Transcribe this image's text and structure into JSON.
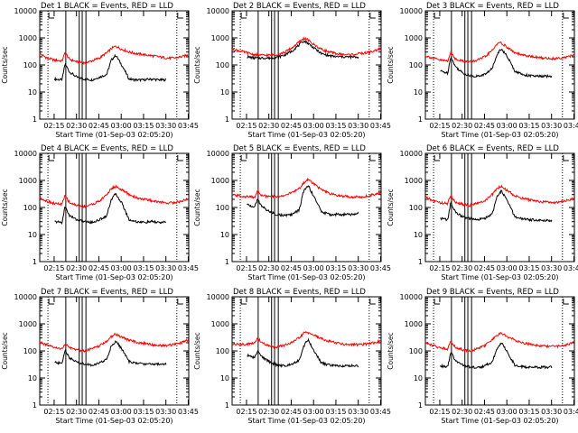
{
  "figure": {
    "x_tick_labels": [
      "02:15",
      "02:30",
      "02:45",
      "03:00",
      "03:15",
      "03:30",
      "03:45"
    ],
    "y_tick_labels": [
      "1",
      "10",
      "100",
      "1000",
      "10000"
    ],
    "ylabel": "Counts/sec",
    "xlabel": "Start Time (01-Sep-03 02:05:20)",
    "title_suffix": " BLACK = Events, RED = LLD",
    "colors": {
      "events": "#000000",
      "lld": "#ff0000",
      "axes": "#000000",
      "background": "#ffffff"
    }
  },
  "chart_data": [
    {
      "type": "line",
      "title": "Det 1",
      "x_unit": "minutes after 02:05:20",
      "xlim": [
        0,
        100
      ],
      "ylim": [
        1,
        10000
      ],
      "yscale": "log",
      "xlabel": "Start Time (01-Sep-03 02:05:20)",
      "ylabel": "Counts/sec",
      "dotted_markers": [
        5.5,
        92
      ],
      "solid_markers": [
        17.5,
        26.5,
        28.5,
        31
      ],
      "events_range": [
        10,
        85
      ],
      "lld_range": [
        0,
        100
      ],
      "series": [
        {
          "name": "Events",
          "x": [
            10,
            15,
            17,
            20,
            25,
            30,
            35,
            40,
            45,
            48,
            51,
            55,
            60,
            65,
            70,
            75,
            80,
            85
          ],
          "y": [
            30,
            28,
            110,
            55,
            35,
            30,
            28,
            35,
            45,
            150,
            230,
            100,
            30,
            28,
            28,
            30,
            28,
            28
          ]
        },
        {
          "name": "LLD",
          "x": [
            0,
            5,
            10,
            15,
            17,
            20,
            25,
            30,
            35,
            40,
            45,
            48,
            51,
            55,
            60,
            65,
            70,
            75,
            80,
            85,
            90,
            95,
            100
          ],
          "y": [
            260,
            180,
            150,
            140,
            290,
            160,
            130,
            120,
            140,
            180,
            280,
            400,
            500,
            380,
            300,
            260,
            240,
            220,
            200,
            180,
            180,
            200,
            240
          ]
        }
      ]
    },
    {
      "type": "line",
      "title": "Det 2",
      "x_unit": "minutes after 02:05:20",
      "xlim": [
        0,
        100
      ],
      "ylim": [
        1,
        10000
      ],
      "yscale": "log",
      "xlabel": "Start Time (01-Sep-03 02:05:20)",
      "ylabel": "Counts/sec",
      "dotted_markers": [
        5.5,
        92
      ],
      "solid_markers": [
        17.5,
        26.5,
        28.5,
        31
      ],
      "events_range": [
        10,
        85
      ],
      "lld_range": [
        0,
        100
      ],
      "series": [
        {
          "name": "Events",
          "x": [
            10,
            15,
            20,
            25,
            30,
            35,
            40,
            45,
            48,
            50,
            55,
            60,
            65,
            70,
            75,
            80,
            85
          ],
          "y": [
            200,
            180,
            180,
            180,
            190,
            230,
            320,
            550,
            760,
            700,
            420,
            260,
            220,
            200,
            200,
            195,
            195
          ]
        },
        {
          "name": "LLD",
          "x": [
            0,
            5,
            10,
            15,
            20,
            25,
            30,
            35,
            40,
            45,
            48,
            50,
            55,
            60,
            65,
            70,
            75,
            80,
            85,
            90,
            95,
            100
          ],
          "y": [
            380,
            330,
            280,
            240,
            230,
            230,
            240,
            290,
            420,
            700,
            950,
            900,
            560,
            380,
            300,
            260,
            240,
            240,
            260,
            280,
            320,
            420
          ]
        }
      ]
    },
    {
      "type": "line",
      "title": "Det 3",
      "x_unit": "minutes after 02:05:20",
      "xlim": [
        0,
        100
      ],
      "ylim": [
        1,
        10000
      ],
      "yscale": "log",
      "xlabel": "Start Time (01-Sep-03 02:05:20)",
      "ylabel": "Counts/sec",
      "dotted_markers": [
        5.5,
        92
      ],
      "solid_markers": [
        17.5,
        26.5,
        28.5,
        31
      ],
      "events_range": [
        10,
        85
      ],
      "lld_range": [
        0,
        100
      ],
      "series": [
        {
          "name": "Events",
          "x": [
            10,
            15,
            17,
            20,
            25,
            30,
            35,
            40,
            45,
            48,
            51,
            55,
            60,
            65,
            70,
            75,
            80,
            85
          ],
          "y": [
            60,
            50,
            200,
            90,
            50,
            40,
            38,
            45,
            75,
            250,
            400,
            200,
            60,
            45,
            40,
            38,
            38,
            38
          ]
        },
        {
          "name": "LLD",
          "x": [
            0,
            5,
            10,
            15,
            17,
            20,
            25,
            30,
            35,
            40,
            45,
            48,
            51,
            55,
            60,
            65,
            70,
            75,
            80,
            85,
            90,
            95,
            100
          ],
          "y": [
            220,
            180,
            150,
            140,
            300,
            170,
            140,
            130,
            150,
            200,
            350,
            600,
            650,
            450,
            280,
            230,
            210,
            190,
            180,
            170,
            180,
            200,
            230
          ]
        }
      ]
    },
    {
      "type": "line",
      "title": "Det 4",
      "x_unit": "minutes after 02:05:20",
      "xlim": [
        0,
        100
      ],
      "ylim": [
        1,
        10000
      ],
      "yscale": "log",
      "xlabel": "Start Time (01-Sep-03 02:05:20)",
      "ylabel": "Counts/sec",
      "dotted_markers": [
        5.5,
        92
      ],
      "solid_markers": [
        17.5,
        26.5,
        28.5,
        31
      ],
      "events_range": [
        10,
        85
      ],
      "lld_range": [
        0,
        100
      ],
      "series": [
        {
          "name": "Events",
          "x": [
            10,
            15,
            17,
            20,
            25,
            30,
            35,
            40,
            45,
            48,
            51,
            55,
            60,
            65,
            70,
            75,
            80,
            85
          ],
          "y": [
            30,
            28,
            110,
            50,
            35,
            30,
            28,
            35,
            50,
            200,
            320,
            150,
            35,
            30,
            28,
            30,
            28,
            28
          ]
        },
        {
          "name": "LLD",
          "x": [
            0,
            5,
            10,
            15,
            17,
            20,
            25,
            30,
            35,
            40,
            45,
            48,
            51,
            55,
            60,
            65,
            70,
            75,
            80,
            85,
            90,
            95,
            100
          ],
          "y": [
            230,
            170,
            140,
            130,
            280,
            150,
            120,
            110,
            130,
            170,
            300,
            500,
            600,
            450,
            300,
            230,
            200,
            180,
            160,
            150,
            150,
            170,
            210
          ]
        }
      ]
    },
    {
      "type": "line",
      "title": "Det 5",
      "x_unit": "minutes after 02:05:20",
      "xlim": [
        0,
        100
      ],
      "ylim": [
        1,
        10000
      ],
      "yscale": "log",
      "xlabel": "Start Time (01-Sep-03 02:05:20)",
      "ylabel": "Counts/sec",
      "dotted_markers": [
        5.5,
        92
      ],
      "solid_markers": [
        17.5,
        26.5,
        28.5,
        31
      ],
      "events_range": [
        10,
        85
      ],
      "lld_range": [
        0,
        100
      ],
      "series": [
        {
          "name": "Events",
          "x": [
            10,
            15,
            17,
            20,
            25,
            30,
            35,
            40,
            45,
            48,
            51,
            55,
            60,
            65,
            70,
            75,
            80,
            85
          ],
          "y": [
            130,
            100,
            200,
            110,
            70,
            55,
            50,
            55,
            80,
            400,
            650,
            250,
            70,
            55,
            55,
            55,
            55,
            60
          ]
        },
        {
          "name": "LLD",
          "x": [
            0,
            5,
            10,
            15,
            17,
            20,
            25,
            30,
            35,
            40,
            45,
            48,
            51,
            55,
            60,
            65,
            70,
            75,
            80,
            85,
            90,
            95,
            100
          ],
          "y": [
            290,
            270,
            250,
            240,
            420,
            280,
            250,
            250,
            280,
            350,
            500,
            800,
            1100,
            750,
            450,
            330,
            280,
            260,
            250,
            240,
            260,
            300,
            380
          ]
        }
      ]
    },
    {
      "type": "line",
      "title": "Det 6",
      "x_unit": "minutes after 02:05:20",
      "xlim": [
        0,
        100
      ],
      "ylim": [
        1,
        10000
      ],
      "yscale": "log",
      "xlabel": "Start Time (01-Sep-03 02:05:20)",
      "ylabel": "Counts/sec",
      "dotted_markers": [
        5.5,
        92
      ],
      "solid_markers": [
        17.5,
        26.5,
        28.5,
        31
      ],
      "events_range": [
        10,
        85
      ],
      "lld_range": [
        0,
        100
      ],
      "series": [
        {
          "name": "Events",
          "x": [
            10,
            15,
            17,
            20,
            25,
            30,
            35,
            40,
            45,
            48,
            51,
            55,
            60,
            65,
            70,
            75,
            80,
            85
          ],
          "y": [
            40,
            35,
            150,
            70,
            45,
            38,
            35,
            40,
            60,
            250,
            400,
            180,
            45,
            38,
            35,
            35,
            33,
            33
          ]
        },
        {
          "name": "LLD",
          "x": [
            0,
            5,
            10,
            15,
            17,
            20,
            25,
            30,
            35,
            40,
            45,
            48,
            51,
            55,
            60,
            65,
            70,
            75,
            80,
            85,
            90,
            95,
            100
          ],
          "y": [
            240,
            180,
            150,
            140,
            280,
            160,
            130,
            120,
            140,
            180,
            300,
            500,
            600,
            420,
            270,
            220,
            190,
            170,
            160,
            150,
            160,
            180,
            220
          ]
        }
      ]
    },
    {
      "type": "line",
      "title": "Det 7",
      "x_unit": "minutes after 02:05:20",
      "xlim": [
        0,
        100
      ],
      "ylim": [
        1,
        10000
      ],
      "yscale": "log",
      "xlabel": "Start Time (01-Sep-03 02:05:20)",
      "ylabel": "Counts/sec",
      "dotted_markers": [
        5.5,
        92
      ],
      "solid_markers": [
        17.5,
        26.5,
        28.5,
        31
      ],
      "events_range": [
        10,
        85
      ],
      "lld_range": [
        0,
        100
      ],
      "series": [
        {
          "name": "Events",
          "x": [
            10,
            15,
            17,
            20,
            25,
            30,
            35,
            40,
            45,
            48,
            51,
            55,
            60,
            65,
            70,
            75,
            80,
            85
          ],
          "y": [
            38,
            34,
            110,
            55,
            38,
            33,
            30,
            35,
            50,
            150,
            230,
            120,
            40,
            35,
            33,
            33,
            33,
            33
          ]
        },
        {
          "name": "LLD",
          "x": [
            0,
            5,
            10,
            15,
            17,
            20,
            25,
            30,
            35,
            40,
            45,
            48,
            51,
            55,
            60,
            65,
            70,
            75,
            80,
            85,
            90,
            95,
            100
          ],
          "y": [
            210,
            160,
            130,
            120,
            180,
            130,
            110,
            100,
            120,
            150,
            230,
            330,
            420,
            320,
            250,
            210,
            190,
            170,
            160,
            160,
            170,
            200,
            260
          ]
        }
      ]
    },
    {
      "type": "line",
      "title": "Det 8",
      "x_unit": "minutes after 02:05:20",
      "xlim": [
        0,
        100
      ],
      "ylim": [
        1,
        10000
      ],
      "yscale": "log",
      "xlabel": "Start Time (01-Sep-03 02:05:20)",
      "ylabel": "Counts/sec",
      "dotted_markers": [
        5.5,
        92
      ],
      "solid_markers": [
        17.5,
        26.5,
        28.5,
        31
      ],
      "events_range": [
        10,
        85
      ],
      "lld_range": [
        0,
        100
      ],
      "series": [
        {
          "name": "Events",
          "x": [
            10,
            15,
            17,
            20,
            25,
            30,
            35,
            40,
            45,
            48,
            51,
            55,
            60,
            65,
            70,
            75,
            80,
            85
          ],
          "y": [
            70,
            55,
            100,
            60,
            40,
            30,
            28,
            33,
            45,
            150,
            260,
            100,
            35,
            30,
            28,
            28,
            28,
            28
          ]
        },
        {
          "name": "LLD",
          "x": [
            0,
            5,
            10,
            15,
            17,
            20,
            25,
            30,
            35,
            40,
            45,
            48,
            51,
            55,
            60,
            65,
            70,
            75,
            80,
            85,
            90,
            95,
            100
          ],
          "y": [
            180,
            170,
            180,
            190,
            300,
            200,
            150,
            140,
            160,
            200,
            300,
            450,
            480,
            380,
            280,
            230,
            200,
            180,
            170,
            170,
            180,
            200,
            230
          ]
        }
      ]
    },
    {
      "type": "line",
      "title": "Det 9",
      "x_unit": "minutes after 02:05:20",
      "xlim": [
        0,
        100
      ],
      "ylim": [
        1,
        10000
      ],
      "yscale": "log",
      "xlabel": "Start Time (01-Sep-03 02:05:20)",
      "ylabel": "Counts/sec",
      "dotted_markers": [
        5.5,
        92
      ],
      "solid_markers": [
        17.5,
        26.5,
        28.5,
        31
      ],
      "events_range": [
        10,
        85
      ],
      "lld_range": [
        0,
        100
      ],
      "series": [
        {
          "name": "Events",
          "x": [
            10,
            15,
            17,
            20,
            25,
            30,
            35,
            40,
            45,
            48,
            51,
            55,
            60,
            65,
            70,
            75,
            80,
            85
          ],
          "y": [
            28,
            25,
            90,
            45,
            30,
            25,
            24,
            28,
            40,
            120,
            200,
            90,
            30,
            26,
            25,
            25,
            25,
            25
          ]
        },
        {
          "name": "LLD",
          "x": [
            0,
            5,
            10,
            15,
            17,
            20,
            25,
            30,
            35,
            40,
            45,
            48,
            51,
            55,
            60,
            65,
            70,
            75,
            80,
            85,
            90,
            95,
            100
          ],
          "y": [
            200,
            160,
            130,
            120,
            230,
            140,
            110,
            100,
            120,
            160,
            260,
            380,
            450,
            340,
            250,
            200,
            180,
            160,
            150,
            145,
            150,
            170,
            210
          ]
        }
      ]
    }
  ]
}
